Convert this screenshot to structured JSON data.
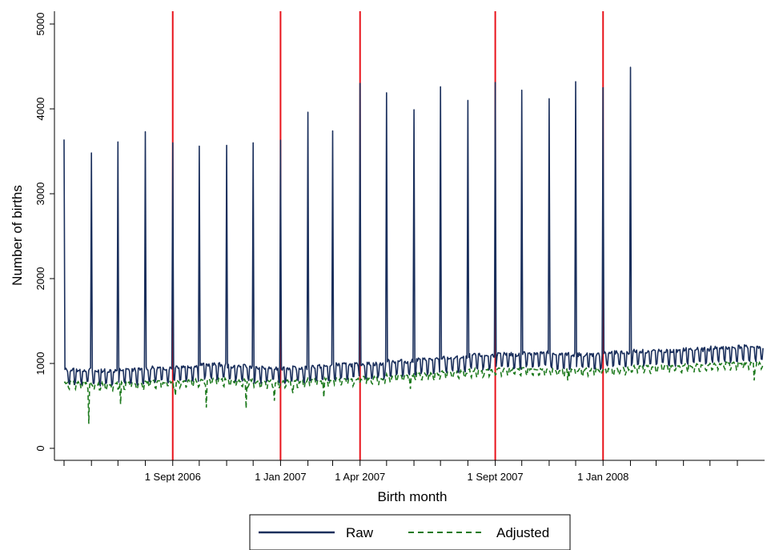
{
  "chart_data": {
    "type": "line",
    "xlabel": "Birth month",
    "ylabel": "Number of births",
    "x_range_days": [
      "2006-05-01",
      "2008-06-30"
    ],
    "ylim": [
      -50,
      5100
    ],
    "y_ticks": [
      0,
      1000,
      2000,
      3000,
      4000,
      5000
    ],
    "x_ticks": {
      "labeled": [
        {
          "date": "2006-09-01",
          "label": "1 Sept 2006"
        },
        {
          "date": "2007-01-01",
          "label": "1 Jan 2007"
        },
        {
          "date": "2007-04-01",
          "label": "1 Apr 2007"
        },
        {
          "date": "2007-09-01",
          "label": "1 Sept 2007"
        },
        {
          "date": "2008-01-01",
          "label": "1 Jan 2008"
        }
      ],
      "unlabeled_month_starts": true
    },
    "reference_lines": {
      "color": "#e8131b",
      "dates": [
        "2006-09-01",
        "2007-01-01",
        "2007-04-01",
        "2007-09-01",
        "2008-01-01"
      ]
    },
    "series": [
      {
        "name": "Raw",
        "color": "#1a2f5c",
        "style": "solid",
        "baseline_by_month": [
          {
            "month": "2006-05",
            "baseline": 880
          },
          {
            "month": "2006-06",
            "baseline": 870
          },
          {
            "month": "2006-07",
            "baseline": 880
          },
          {
            "month": "2006-08",
            "baseline": 900
          },
          {
            "month": "2006-09",
            "baseline": 920
          },
          {
            "month": "2006-10",
            "baseline": 940
          },
          {
            "month": "2006-11",
            "baseline": 920
          },
          {
            "month": "2006-12",
            "baseline": 900
          },
          {
            "month": "2007-01",
            "baseline": 900
          },
          {
            "month": "2007-02",
            "baseline": 920
          },
          {
            "month": "2007-03",
            "baseline": 940
          },
          {
            "month": "2007-04",
            "baseline": 950
          },
          {
            "month": "2007-05",
            "baseline": 980
          },
          {
            "month": "2007-06",
            "baseline": 1000
          },
          {
            "month": "2007-07",
            "baseline": 1020
          },
          {
            "month": "2007-08",
            "baseline": 1050
          },
          {
            "month": "2007-09",
            "baseline": 1060
          },
          {
            "month": "2007-10",
            "baseline": 1080
          },
          {
            "month": "2007-11",
            "baseline": 1060
          },
          {
            "month": "2007-12",
            "baseline": 1060
          },
          {
            "month": "2008-01",
            "baseline": 1080
          },
          {
            "month": "2008-02",
            "baseline": 1100
          },
          {
            "month": "2008-03",
            "baseline": 1100
          },
          {
            "month": "2008-04",
            "baseline": 1120
          },
          {
            "month": "2008-05",
            "baseline": 1140
          },
          {
            "month": "2008-06",
            "baseline": 1150
          }
        ],
        "weekly_amplitude": 100,
        "first_of_month_spikes": [
          {
            "date": "2006-05-01",
            "value": 3640
          },
          {
            "date": "2006-06-01",
            "value": 3480
          },
          {
            "date": "2006-07-01",
            "value": 3610
          },
          {
            "date": "2006-08-01",
            "value": 3730
          },
          {
            "date": "2006-09-01",
            "value": 3600
          },
          {
            "date": "2006-10-01",
            "value": 3560
          },
          {
            "date": "2006-11-01",
            "value": 3570
          },
          {
            "date": "2006-12-01",
            "value": 3600
          },
          {
            "date": "2007-01-01",
            "value": 3630
          },
          {
            "date": "2007-02-01",
            "value": 3960
          },
          {
            "date": "2007-03-01",
            "value": 3740
          },
          {
            "date": "2007-04-01",
            "value": 4300
          },
          {
            "date": "2007-05-01",
            "value": 4190
          },
          {
            "date": "2007-06-01",
            "value": 3990
          },
          {
            "date": "2007-07-01",
            "value": 4260
          },
          {
            "date": "2007-08-01",
            "value": 4100
          },
          {
            "date": "2007-09-01",
            "value": 4310
          },
          {
            "date": "2007-10-01",
            "value": 4220
          },
          {
            "date": "2007-11-01",
            "value": 4120
          },
          {
            "date": "2007-12-01",
            "value": 4320
          },
          {
            "date": "2008-01-01",
            "value": 4250
          },
          {
            "date": "2008-02-01",
            "value": 4490
          }
        ]
      },
      {
        "name": "Adjusted",
        "color": "#1e7a1e",
        "style": "dashed",
        "baseline_by_month": [
          {
            "month": "2006-05",
            "baseline": 760
          },
          {
            "month": "2006-06",
            "baseline": 740
          },
          {
            "month": "2006-07",
            "baseline": 750
          },
          {
            "month": "2006-08",
            "baseline": 770
          },
          {
            "month": "2006-09",
            "baseline": 780
          },
          {
            "month": "2006-10",
            "baseline": 790
          },
          {
            "month": "2006-11",
            "baseline": 780
          },
          {
            "month": "2006-12",
            "baseline": 770
          },
          {
            "month": "2007-01",
            "baseline": 770
          },
          {
            "month": "2007-02",
            "baseline": 790
          },
          {
            "month": "2007-03",
            "baseline": 800
          },
          {
            "month": "2007-04",
            "baseline": 810
          },
          {
            "month": "2007-05",
            "baseline": 840
          },
          {
            "month": "2007-06",
            "baseline": 860
          },
          {
            "month": "2007-07",
            "baseline": 880
          },
          {
            "month": "2007-08",
            "baseline": 900
          },
          {
            "month": "2007-09",
            "baseline": 910
          },
          {
            "month": "2007-10",
            "baseline": 920
          },
          {
            "month": "2007-11",
            "baseline": 900
          },
          {
            "month": "2007-12",
            "baseline": 910
          },
          {
            "month": "2008-01",
            "baseline": 920
          },
          {
            "month": "2008-02",
            "baseline": 940
          },
          {
            "month": "2008-03",
            "baseline": 950
          },
          {
            "month": "2008-04",
            "baseline": 960
          },
          {
            "month": "2008-05",
            "baseline": 980
          },
          {
            "month": "2008-06",
            "baseline": 990
          }
        ],
        "weekly_amplitude": 45,
        "dips": [
          {
            "date": "2006-05-29",
            "value": 290
          },
          {
            "date": "2006-07-04",
            "value": 520
          },
          {
            "date": "2006-09-04",
            "value": 620
          },
          {
            "date": "2006-10-09",
            "value": 480
          },
          {
            "date": "2006-11-23",
            "value": 470
          },
          {
            "date": "2006-12-25",
            "value": 560
          },
          {
            "date": "2007-01-15",
            "value": 650
          },
          {
            "date": "2007-02-19",
            "value": 600
          },
          {
            "date": "2007-05-28",
            "value": 700
          },
          {
            "date": "2007-11-22",
            "value": 800
          },
          {
            "date": "2008-06-20",
            "value": 800
          }
        ]
      }
    ],
    "legend": {
      "position": "bottom-center",
      "entries": [
        {
          "label": "Raw",
          "series": "Raw"
        },
        {
          "label": "Adjusted",
          "series": "Adjusted"
        }
      ]
    }
  }
}
